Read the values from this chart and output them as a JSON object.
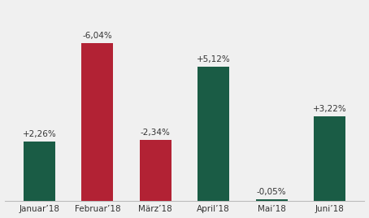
{
  "categories": [
    "Januar’18",
    "Februar’18",
    "März’18",
    "April’18",
    "Mai’18",
    "Juni’18"
  ],
  "values": [
    2.26,
    -6.04,
    -2.34,
    5.12,
    -0.05,
    3.22
  ],
  "abs_values": [
    2.26,
    6.04,
    2.34,
    5.12,
    0.05,
    3.22
  ],
  "labels": [
    "+2,26%",
    "-6,04%",
    "-2,34%",
    "+5,12%",
    "-0,05%",
    "+3,22%"
  ],
  "bar_colors": [
    "#1a5c45",
    "#b22234",
    "#b22234",
    "#1a5c45",
    "#1a5c45",
    "#1a5c45"
  ],
  "background_color": "#f0f0f0",
  "grid_color": "#ffffff",
  "text_color": "#333333",
  "ylim": [
    0,
    7.5
  ],
  "bar_width": 0.55,
  "label_fontsize": 7.5,
  "tick_fontsize": 7.5
}
